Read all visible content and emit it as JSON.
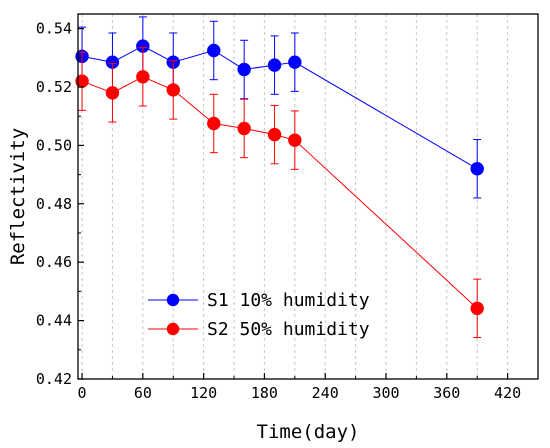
{
  "chart_data": {
    "type": "line",
    "xlabel": "Time(day)",
    "ylabel": "Reflectivity",
    "xlim": [
      -4,
      450
    ],
    "ylim": [
      0.42,
      0.545
    ],
    "xticks": [
      0,
      60,
      120,
      180,
      240,
      300,
      360,
      420
    ],
    "yticks": [
      0.42,
      0.44,
      0.46,
      0.48,
      0.5,
      0.52,
      0.54
    ],
    "ytick_labels": [
      "0.42",
      "0.44",
      "0.46",
      "0.48",
      "0.50",
      "0.52",
      "0.54"
    ],
    "grid": "vertical dashed",
    "legend_position": "bottom-center",
    "series": [
      {
        "name": "S1 10% humidity",
        "color": "#0000ff",
        "marker": "circle",
        "x": [
          0,
          30,
          60,
          90,
          130,
          160,
          190,
          210,
          390
        ],
        "y": [
          0.5305,
          0.5285,
          0.534,
          0.5285,
          0.5325,
          0.526,
          0.5275,
          0.5285,
          0.492
        ],
        "error": [
          0.01,
          0.01,
          0.01,
          0.01,
          0.01,
          0.01,
          0.01,
          0.01,
          0.01
        ]
      },
      {
        "name": "S2 50% humidity",
        "color": "#ff0000",
        "marker": "circle",
        "x": [
          0,
          30,
          60,
          90,
          130,
          160,
          190,
          210,
          390
        ],
        "y": [
          0.522,
          0.518,
          0.5235,
          0.519,
          0.5075,
          0.5058,
          0.5037,
          0.5018,
          0.4442
        ],
        "error": [
          0.01,
          0.01,
          0.01,
          0.01,
          0.01,
          0.01,
          0.01,
          0.01,
          0.01
        ]
      }
    ]
  }
}
